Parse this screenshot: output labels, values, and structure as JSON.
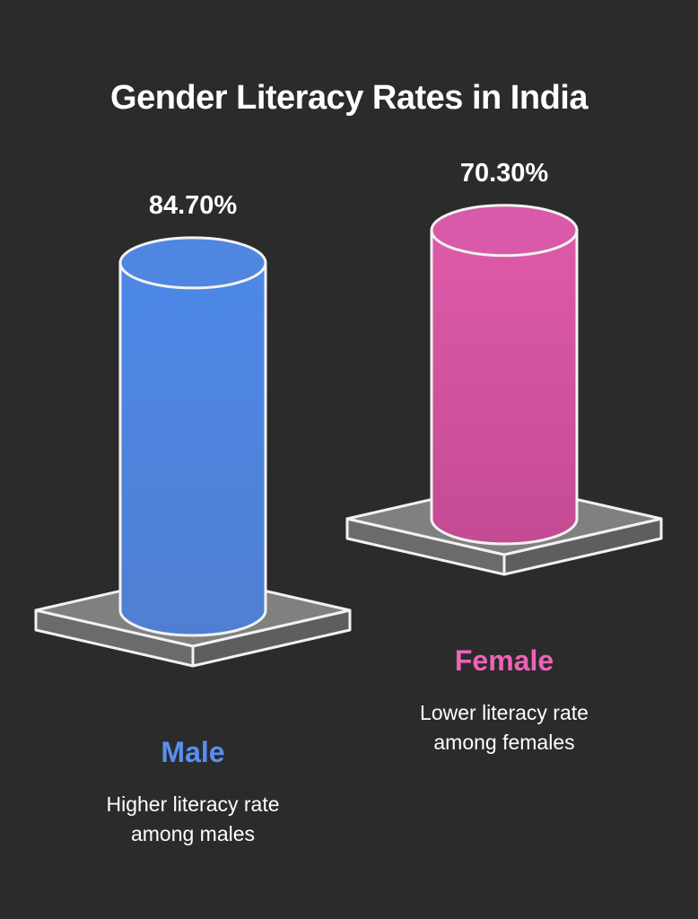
{
  "chart_data": {
    "type": "bar",
    "title": "Gender Literacy Rates in India",
    "categories": [
      "Male",
      "Female"
    ],
    "values": [
      84.7,
      70.3
    ],
    "value_labels": [
      "84.70%",
      "70.30%"
    ],
    "descriptions": [
      [
        "Higher literacy rate",
        "among males"
      ],
      [
        "Lower literacy rate",
        "among females"
      ]
    ],
    "colors": [
      "#4f86e2",
      "#d95aa8"
    ],
    "label_colors": [
      "#5a8ff0",
      "#ee62b6"
    ]
  }
}
